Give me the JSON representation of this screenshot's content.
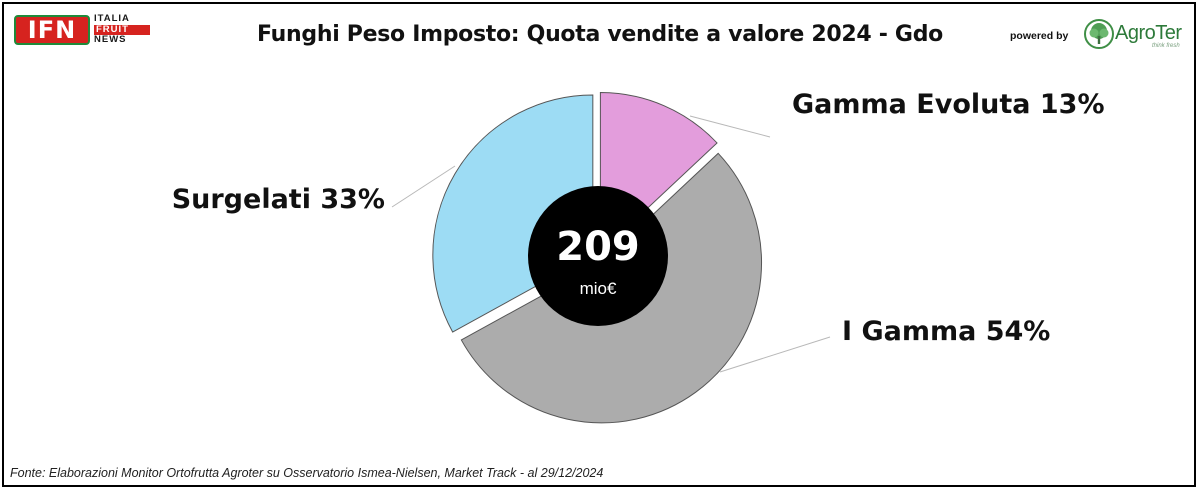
{
  "header": {
    "logo_mark": "IFN",
    "logo_words": [
      "ITALIA",
      "FRUIT",
      "NEWS"
    ],
    "title": "Funghi Peso Imposto: Quota vendite a valore 2024 - Gdo",
    "powered_by": "powered by",
    "partner_name": "AgroTer",
    "partner_tagline": "think fresh",
    "partner_icon": "tree-icon"
  },
  "chart_data": {
    "type": "pie",
    "variant": "donut-exploded",
    "center_value": "209",
    "center_unit": "mio€",
    "slices": [
      {
        "label": "Gamma Evoluta 13%",
        "name": "Gamma Evoluta",
        "value": 13,
        "color": "#e39ddc"
      },
      {
        "label": "I Gamma 54%",
        "name": "I Gamma",
        "value": 54,
        "color": "#acacac"
      },
      {
        "label": "Surgelati 33%",
        "name": "Surgelati",
        "value": 33,
        "color": "#9ddcf4"
      }
    ],
    "center_color": "#000000",
    "slice_edge_color": "#555555",
    "leader_color": "#b8b8b8"
  },
  "footer": {
    "source": "Fonte: Elaborazioni Monitor Ortofrutta Agroter su Osservatorio Ismea-Nielsen, Market Track - al 29/12/2024"
  }
}
